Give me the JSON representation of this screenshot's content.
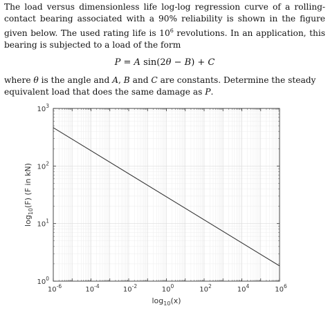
{
  "problem": {
    "paragraph1": {
      "part_a": "The load versus dimensionless life log-log regression curve of a rolling-contact bearing associated with a 90% reliability is shown in the figure given below. The used rating life is 10",
      "part_a_sup": "6",
      "part_b": " revolutions. In an application, this bearing is subjected to a load of the form"
    },
    "equation": {
      "lhs": "P",
      "eq": " = ",
      "A": "A",
      "sin_open": " sin(2",
      "theta": "θ",
      "minus": " − ",
      "B": "B",
      "close_plus": ") + ",
      "C": "C"
    },
    "paragraph2": {
      "t1": "where ",
      "theta": "θ",
      "t2": " is the angle and ",
      "A": "A",
      "t3": ", ",
      "B": "B",
      "t4": " and ",
      "C": "C",
      "t5": " are constants. Determine the steady equivalent load that does the same damage as ",
      "P": "P",
      "t6": "."
    }
  },
  "chart_data": {
    "type": "line",
    "xscale": "log",
    "yscale": "log",
    "xlim": [
      1e-06,
      1000000.0
    ],
    "ylim": [
      1,
      1000
    ],
    "xlabel": {
      "prefix": "log",
      "sub": "10",
      "suffix": "(x)"
    },
    "ylabel": {
      "prefix": "log",
      "sub": "10",
      "suffix": "(F) (F in kN)"
    },
    "x_ticks": [
      {
        "value": 1e-06,
        "base": "10",
        "exp": "-6"
      },
      {
        "value": 0.0001,
        "base": "10",
        "exp": "-4"
      },
      {
        "value": 0.01,
        "base": "10",
        "exp": "-2"
      },
      {
        "value": 1,
        "base": "10",
        "exp": "0"
      },
      {
        "value": 100.0,
        "base": "10",
        "exp": "2"
      },
      {
        "value": 10000.0,
        "base": "10",
        "exp": "4"
      },
      {
        "value": 1000000.0,
        "base": "10",
        "exp": "6"
      }
    ],
    "y_ticks": [
      {
        "value": 1,
        "base": "10",
        "exp": "0"
      },
      {
        "value": 10,
        "base": "10",
        "exp": "1"
      },
      {
        "value": 100,
        "base": "10",
        "exp": "2"
      },
      {
        "value": 1000,
        "base": "10",
        "exp": "3"
      }
    ],
    "grid": true,
    "minor_grid": true,
    "series": [
      {
        "x": [
          1e-06,
          1000000.0
        ],
        "y": [
          464,
          1.84
        ],
        "color": "#333333"
      }
    ]
  }
}
